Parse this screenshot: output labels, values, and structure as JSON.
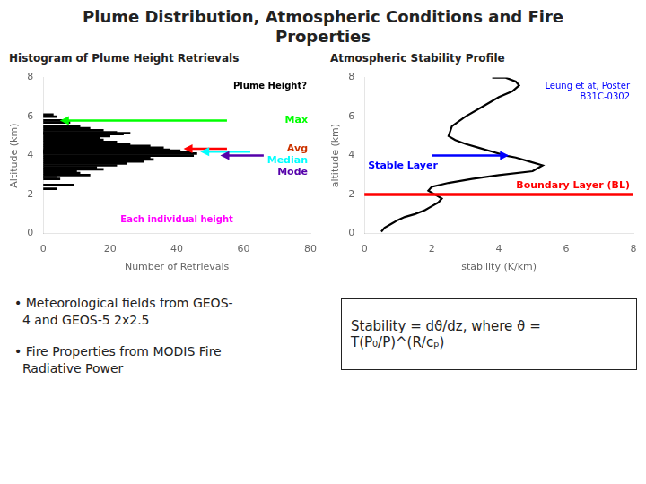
{
  "title": "Plume Distribution, Atmospheric Conditions and Fire\nProperties",
  "notes": [
    "• Meteorological fields from GEOS-\n  4 and GEOS-5 2x2.5",
    "• Fire Properties from MODIS Fire\n  Radiative Power"
  ],
  "formula": "Stability = dϑ/dz, where ϑ = T(P₀/P)^(R/cₚ)",
  "chart_data": [
    {
      "type": "bar",
      "title": "Histogram of Plume Height Retrievals",
      "orientation": "horizontal",
      "x_label": "Number of Retrievals",
      "y_label": "Altitude (km)",
      "x": [
        2.3,
        2.5,
        2.8,
        2.9,
        3.0,
        3.1,
        3.2,
        3.3,
        3.4,
        3.5,
        3.6,
        3.7,
        3.8,
        3.9,
        4.0,
        4.1,
        4.15,
        4.2,
        4.25,
        4.3,
        4.4,
        4.5,
        4.6,
        4.7,
        4.8,
        4.9,
        5.0,
        5.1,
        5.15,
        5.2,
        5.3,
        5.4,
        5.5,
        5.7,
        5.8,
        6.0,
        6.1
      ],
      "values": [
        4,
        9,
        5,
        4,
        14,
        11,
        10,
        18,
        16,
        22,
        25,
        30,
        33,
        32,
        45,
        46,
        44,
        43,
        41,
        38,
        36,
        32,
        26,
        22,
        18,
        17,
        20,
        24,
        26,
        22,
        18,
        14,
        11,
        8,
        6,
        4,
        3
      ],
      "color": "black",
      "xlim": [
        0,
        80
      ],
      "xticks": [
        0,
        20,
        40,
        60,
        80
      ],
      "ylim": [
        0,
        8
      ],
      "yticks": [
        0,
        2,
        4,
        6,
        8
      ],
      "grid": false,
      "annotations": [
        {
          "text": "Plume Height?",
          "color": "black"
        },
        {
          "text": "Max",
          "color": "lime",
          "y": 5.8,
          "x_tip": 5,
          "x_tail": 55
        },
        {
          "text": "Avg",
          "color": "#cc3300",
          "arrow_color": "red",
          "y": 4.35,
          "x_tip": 42,
          "x_tail": 55
        },
        {
          "text": "Median",
          "color": "cyan",
          "y": 4.2,
          "x_tip": 47,
          "x_tail": 62
        },
        {
          "text": "Mode",
          "color": "#5500aa",
          "y": 4.0,
          "x_tip": 53,
          "x_tail": 66
        },
        {
          "text": "Each individual height",
          "color": "magenta"
        }
      ]
    },
    {
      "type": "line",
      "title": "Atmospheric Stability Profile",
      "x_label": "stability (K/km)",
      "y_label": "altitude (km)",
      "x": [
        0.5,
        0.6,
        0.8,
        1.0,
        1.2,
        1.5,
        1.8,
        2.0,
        2.2,
        2.3,
        2.1,
        1.9,
        2.0,
        2.5,
        3.2,
        4.0,
        5.0,
        5.3,
        4.9,
        4.5,
        4.2,
        3.8,
        3.4,
        3.0,
        2.7,
        2.5,
        2.6,
        3.0,
        3.5,
        4.0,
        4.4,
        4.6,
        4.5,
        4.2,
        3.8
      ],
      "values": [
        0.1,
        0.3,
        0.5,
        0.7,
        0.85,
        1.0,
        1.2,
        1.4,
        1.6,
        1.8,
        2.0,
        2.2,
        2.4,
        2.6,
        2.8,
        3.0,
        3.2,
        3.5,
        3.7,
        3.9,
        4.0,
        4.2,
        4.4,
        4.6,
        4.8,
        5.0,
        5.5,
        6.0,
        6.5,
        7.0,
        7.3,
        7.6,
        7.8,
        8.0,
        8.0
      ],
      "color": "black",
      "xlim": [
        0,
        8
      ],
      "xticks": [
        0,
        2,
        4,
        6,
        8
      ],
      "ylim": [
        0,
        8
      ],
      "yticks": [
        0,
        2,
        4,
        6,
        8
      ],
      "grid": false,
      "annotations": [
        {
          "text": "Boundary Layer (BL)",
          "color": "red",
          "hline": 2.0
        },
        {
          "text": "Stable Layer",
          "color": "blue",
          "y": 4.0,
          "x_tip": 4.3,
          "x_tail": 2.0
        },
        {
          "text": "Leung et at, Poster\nB31C-0302",
          "color": "blue"
        }
      ]
    }
  ]
}
